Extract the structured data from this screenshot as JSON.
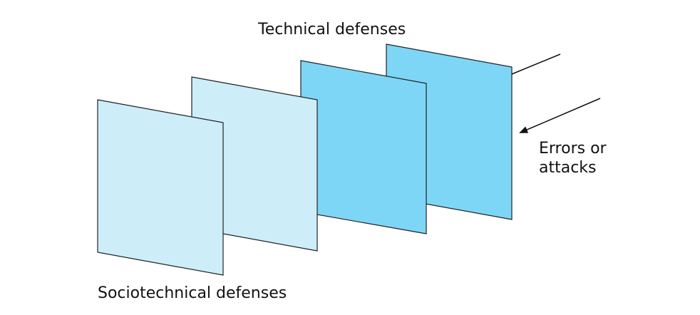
{
  "labels": {
    "technical": "Technical defenses",
    "sociotechnical": "Sociotechnical defenses",
    "errors_line1": "Errors or",
    "errors_line2": "attacks"
  },
  "colors": {
    "layer_light": "#cdeef9",
    "layer_dark": "#7ed6f6",
    "outline": "#222222",
    "arrow": "#111111"
  },
  "layers": [
    {
      "name": "sociotechnical-layer-1",
      "shade": "light"
    },
    {
      "name": "sociotechnical-layer-2",
      "shade": "light"
    },
    {
      "name": "technical-layer-1",
      "shade": "dark"
    },
    {
      "name": "technical-layer-2",
      "shade": "dark"
    }
  ]
}
